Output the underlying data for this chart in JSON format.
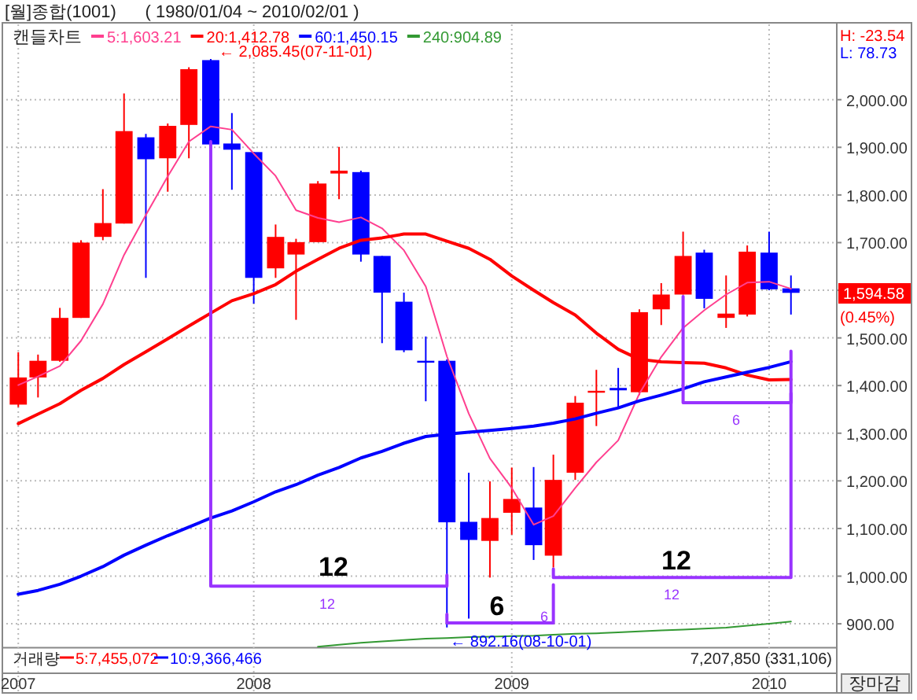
{
  "chart_data": {
    "type": "candlestick",
    "title": "[월]종합(1001)      ( 1980/01/04 ~ 2010/02/01 )",
    "legend_title": "캔들차트",
    "x": [
      "2007-02",
      "2007-03",
      "2007-04",
      "2007-05",
      "2007-06",
      "2007-07",
      "2007-08",
      "2007-09",
      "2007-10",
      "2007-11",
      "2007-12",
      "2008-01",
      "2008-02",
      "2008-03",
      "2008-04",
      "2008-05",
      "2008-06",
      "2008-07",
      "2008-08",
      "2008-09",
      "2008-10",
      "2008-11",
      "2008-12",
      "2009-01",
      "2009-02",
      "2009-03",
      "2009-04",
      "2009-05",
      "2009-06",
      "2009-07",
      "2009-08",
      "2009-09",
      "2009-10",
      "2009-11",
      "2009-12",
      "2010-01",
      "2010-02"
    ],
    "ohlc": [
      [
        1360,
        1470,
        1355,
        1417
      ],
      [
        1417,
        1465,
        1375,
        1452
      ],
      [
        1452,
        1563,
        1450,
        1542
      ],
      [
        1542,
        1705,
        1542,
        1700
      ],
      [
        1712,
        1812,
        1705,
        1741
      ],
      [
        1740,
        2013,
        1740,
        1934
      ],
      [
        1921,
        1928,
        1626,
        1875
      ],
      [
        1877,
        1950,
        1807,
        1945
      ],
      [
        1947,
        2068,
        1877,
        2064
      ],
      [
        2083,
        2085.45,
        1906,
        1906
      ],
      [
        1908,
        1972,
        1811,
        1895
      ],
      [
        1890,
        1890,
        1572,
        1626
      ],
      [
        1646,
        1738,
        1626,
        1712
      ],
      [
        1675,
        1708,
        1538,
        1701
      ],
      [
        1701,
        1829,
        1701,
        1824
      ],
      [
        1845,
        1901,
        1791,
        1851
      ],
      [
        1848,
        1851,
        1660,
        1675
      ],
      [
        1672,
        1672,
        1489,
        1595
      ],
      [
        1576,
        1595,
        1470,
        1474
      ],
      [
        1452,
        1503,
        1367,
        1448
      ],
      [
        1452,
        1455,
        892.16,
        1113
      ],
      [
        1114,
        1217,
        911,
        1076
      ],
      [
        1074,
        1199,
        997,
        1122
      ],
      [
        1133,
        1228,
        1087,
        1162
      ],
      [
        1144,
        1229,
        1034,
        1065
      ],
      [
        1043,
        1255,
        1018,
        1202
      ],
      [
        1217,
        1378,
        1202,
        1364
      ],
      [
        1385,
        1433,
        1315,
        1389
      ],
      [
        1395,
        1437,
        1351,
        1390
      ],
      [
        1386,
        1560,
        1380,
        1554
      ],
      [
        1560,
        1615,
        1527,
        1591
      ],
      [
        1591,
        1723,
        1591,
        1672
      ],
      [
        1679,
        1685,
        1562,
        1582
      ],
      [
        1542,
        1631,
        1521,
        1551
      ],
      [
        1549,
        1694,
        1545,
        1681
      ],
      [
        1679,
        1723,
        1600,
        1602
      ],
      [
        1604,
        1631,
        1549,
        1594.58
      ]
    ],
    "colors": [
      "#ff0000",
      "#ff0000",
      "#ff0000",
      "#ff0000",
      "#ff0000",
      "#ff0000",
      "#0000ff",
      "#ff0000",
      "#ff0000",
      "#0000ff",
      "#0000ff",
      "#0000ff",
      "#ff0000",
      "#ff0000",
      "#ff0000",
      "#ff0000",
      "#0000ff",
      "#0000ff",
      "#0000ff",
      "#0000ff",
      "#0000ff",
      "#0000ff",
      "#ff0000",
      "#ff0000",
      "#0000ff",
      "#ff0000",
      "#ff0000",
      "#ff0000",
      "#0000ff",
      "#ff0000",
      "#ff0000",
      "#ff0000",
      "#0000ff",
      "#ff0000",
      "#ff0000",
      "#0000ff",
      "#0000ff"
    ],
    "series": [
      {
        "type": "line",
        "name": "5:1,603.21",
        "color": "#ff3f8f",
        "values": [
          1401,
          1419,
          1441,
          1494,
          1571,
          1674,
          1758,
          1839,
          1912,
          1944,
          1937,
          1887,
          1840,
          1768,
          1752,
          1743,
          1753,
          1730,
          1684,
          1608,
          1461,
          1341,
          1247,
          1185,
          1108,
          1126,
          1185,
          1239,
          1285,
          1383,
          1460,
          1521,
          1558,
          1591,
          1616,
          1618,
          1603.21
        ]
      },
      {
        "type": "line",
        "name": "20:1,412.78",
        "color": "#ff0000",
        "values": [
          1320,
          1340,
          1362,
          1390,
          1415,
          1444,
          1471,
          1498,
          1525,
          1552,
          1578,
          1593,
          1612,
          1640,
          1665,
          1688,
          1705,
          1710,
          1718,
          1718,
          1703,
          1688,
          1665,
          1630,
          1600,
          1574,
          1548,
          1510,
          1476,
          1455,
          1450,
          1448,
          1447,
          1437,
          1422,
          1412,
          1412.78
        ]
      },
      {
        "type": "line",
        "name": "60:1,450.15",
        "color": "#0000ff",
        "values": [
          962,
          970,
          983,
          1000,
          1020,
          1044,
          1065,
          1085,
          1103,
          1122,
          1137,
          1156,
          1177,
          1192,
          1212,
          1228,
          1248,
          1262,
          1279,
          1293,
          1298,
          1302,
          1306,
          1310,
          1315,
          1321,
          1330,
          1342,
          1353,
          1368,
          1380,
          1393,
          1408,
          1418,
          1428,
          1438,
          1450.15
        ]
      },
      {
        "type": "line",
        "name": "240:904.89",
        "color": "#339933",
        "values": [
          null,
          null,
          null,
          null,
          null,
          null,
          null,
          null,
          null,
          null,
          null,
          null,
          null,
          null,
          852,
          856,
          860,
          863,
          866,
          869,
          870,
          872,
          873,
          874,
          875,
          877,
          879,
          880,
          882,
          884,
          886,
          888,
          890,
          892,
          896,
          900,
          904.89
        ]
      },
      {
        "type": "line",
        "color": "#9933ff",
        "x": [
          "2007-11",
          "2007-11",
          "2008-10",
          "2008-10"
        ],
        "values": [
          1912,
          979,
          979,
          1002
        ]
      },
      {
        "type": "line",
        "color": "#9933ff",
        "x": [
          "2008-10",
          "2008-10",
          "2009-03",
          "2009-03"
        ],
        "values": [
          920,
          902,
          902,
          982
        ]
      },
      {
        "type": "line",
        "color": "#9933ff",
        "x": [
          "2009-03",
          "2009-03",
          "2010-02",
          "2010-02"
        ],
        "values": [
          1015,
          997,
          997,
          1384
        ]
      },
      {
        "type": "line",
        "color": "#9933ff",
        "x": [
          "2009-09",
          "2009-09",
          "2010-02",
          "2010-02"
        ],
        "values": [
          1587,
          1364,
          1364,
          1472
        ]
      }
    ],
    "xlim": [
      "2007-01-15",
      "2010-04-07"
    ],
    "xticks": [
      {
        "value": "2007-02",
        "label": "2007"
      },
      {
        "value": "2008",
        "label": "2008"
      },
      {
        "value": "2009",
        "label": "2009"
      },
      {
        "value": "2010",
        "label": "2010"
      }
    ],
    "ylim": [
      850,
      2158
    ],
    "yticks": [
      {
        "value": 900,
        "label": "900.00"
      },
      {
        "value": 1000,
        "label": "1,000.00"
      },
      {
        "value": 1100,
        "label": "1,100.00"
      },
      {
        "value": 1200,
        "label": "1,200.00"
      },
      {
        "value": 1300,
        "label": "1,300.00"
      },
      {
        "value": 1400,
        "label": "1,400.00"
      },
      {
        "value": 1500,
        "label": "1,500.00"
      },
      {
        "value": 1600,
        "label": null
      },
      {
        "value": 1700,
        "label": "1,700.00"
      },
      {
        "value": 1800,
        "label": "1,800.00"
      },
      {
        "value": 1900,
        "label": "1,900.00"
      },
      {
        "value": 2000,
        "label": "2,000.00"
      }
    ],
    "grid": true,
    "legend": "top left",
    "annotations": [
      "H: -23.54",
      "L: 78.73",
      "← 2,085.45(07-11-01)",
      {
        "text": "← 892.16(08-10-01)",
        "x": "2008-10",
        "y": 892.16
      },
      "12",
      "12",
      "6",
      "6",
      "12",
      "12",
      "6",
      "1,594.58",
      "(0.45%)",
      "거래량",
      "5:7,455,072",
      "10:9,366,466",
      "7,207,850 (331,106)",
      "장마감"
    ]
  }
}
